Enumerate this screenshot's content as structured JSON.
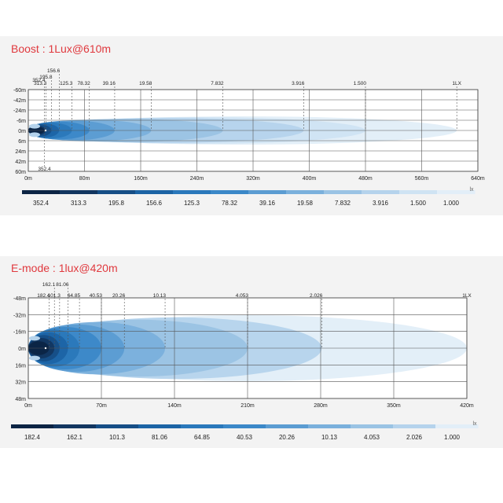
{
  "chart_data": [
    {
      "type": "area",
      "title": "Boost : 1Lux@610m",
      "x_ticks": [
        "0m",
        "80m",
        "160m",
        "240m",
        "320m",
        "400m",
        "480m",
        "560m",
        "640m"
      ],
      "y_ticks": [
        "-60m",
        "-42m",
        "-24m",
        "-6m",
        "0m",
        "6m",
        "24m",
        "42m",
        "60m"
      ],
      "xlim": [
        0,
        640
      ],
      "ylim": [
        -60,
        60
      ],
      "unit": "lx",
      "series": [
        {
          "value": "352.4",
          "reach": 23
        },
        {
          "value": "313.3",
          "reach": 25
        },
        {
          "value": "195.8",
          "reach": 33
        },
        {
          "value": "156.6",
          "reach": 44
        },
        {
          "value": "125.3",
          "reach": 62
        },
        {
          "value": "78.32",
          "reach": 87
        },
        {
          "value": "39.16",
          "reach": 123
        },
        {
          "value": "19.58",
          "reach": 175
        },
        {
          "value": "7.832",
          "reach": 277
        },
        {
          "value": "3.916",
          "reach": 392
        },
        {
          "value": "1.500",
          "reach": 480
        },
        {
          "value": "1LX",
          "reach": 610
        }
      ],
      "legend": [
        "352.4",
        "313.3",
        "195.8",
        "156.6",
        "125.3",
        "78.32",
        "39.16",
        "19.58",
        "7.832",
        "3.916",
        "1.500",
        "1.000"
      ],
      "bottom_marker": "352.4",
      "colors": [
        "#0c2444",
        "#123660",
        "#164e86",
        "#1c64a5",
        "#2a78bb",
        "#3b88c8",
        "#5b9cd2",
        "#7ab0dc",
        "#9ac3e4",
        "#b5d3ec",
        "#cfe3f3",
        "#e2eef8"
      ]
    },
    {
      "type": "area",
      "title": "E-mode : 1lux@420m",
      "x_ticks": [
        "0m",
        "70m",
        "140m",
        "210m",
        "280m",
        "350m",
        "420m"
      ],
      "y_ticks": [
        "-48m",
        "-32m",
        "-16m",
        "0m",
        "16m",
        "32m",
        "48m"
      ],
      "xlim": [
        0,
        420
      ],
      "ylim": [
        -48,
        48
      ],
      "unit": "lx",
      "series": [
        {
          "value": "182.4",
          "reach": 20
        },
        {
          "value": "162.1",
          "reach": 25
        },
        {
          "value": "101.3",
          "reach": 30
        },
        {
          "value": "81.06",
          "reach": 38
        },
        {
          "value": "64.85",
          "reach": 49
        },
        {
          "value": "40.53",
          "reach": 70
        },
        {
          "value": "20.26",
          "reach": 92
        },
        {
          "value": "10.13",
          "reach": 131
        },
        {
          "value": "4.053",
          "reach": 210
        },
        {
          "value": "2.026",
          "reach": 281
        },
        {
          "value": "1LX",
          "reach": 420
        }
      ],
      "legend": [
        "182.4",
        "162.1",
        "101.3",
        "81.06",
        "64.85",
        "40.53",
        "20.26",
        "10.13",
        "4.053",
        "2.026",
        "1.000"
      ],
      "colors": [
        "#0c2444",
        "#123660",
        "#164e86",
        "#1c64a5",
        "#2a78bb",
        "#3b88c8",
        "#5b9cd2",
        "#7ab0dc",
        "#9ac3e4",
        "#b5d3ec",
        "#e2eef8"
      ]
    }
  ]
}
